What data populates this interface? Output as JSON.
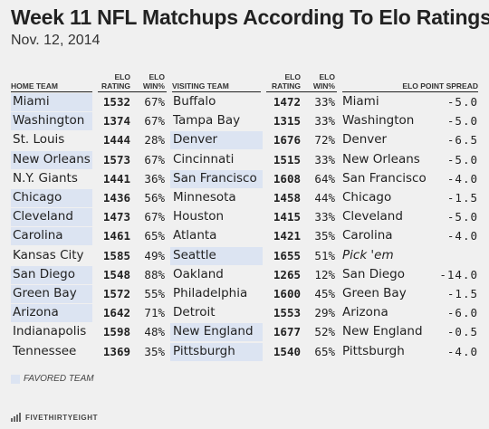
{
  "title": "Week 11 NFL Matchups According To Elo Ratings",
  "date": "Nov. 12, 2014",
  "headers": {
    "home_team": "HOME TEAM",
    "elo_rating": [
      "ELO",
      "RATING"
    ],
    "elo_win": [
      "ELO",
      "WIN%"
    ],
    "visiting_team": "VISITING TEAM",
    "elo_point_spread": "ELO POINT SPREAD"
  },
  "legend": {
    "label": "FAVORED TEAM",
    "color": "#dce4f2"
  },
  "footer": {
    "brand": "FIVETHIRTYEIGHT",
    "logo": "fivethirtyeight-logo"
  },
  "chart_data": {
    "type": "table",
    "columns": [
      "HOME TEAM",
      "ELO RATING",
      "ELO WIN%",
      "VISITING TEAM",
      "ELO RATING",
      "ELO WIN%",
      "ELO POINT SPREAD"
    ],
    "rows": [
      {
        "home": "Miami",
        "home_elo": "1532",
        "home_win": "67%",
        "visitor": "Buffalo",
        "visitor_elo": "1472",
        "visitor_win": "33%",
        "spread_team": "Miami",
        "spread": "-5.0",
        "favored": "home"
      },
      {
        "home": "Washington",
        "home_elo": "1374",
        "home_win": "67%",
        "visitor": "Tampa Bay",
        "visitor_elo": "1315",
        "visitor_win": "33%",
        "spread_team": "Washington",
        "spread": "-5.0",
        "favored": "home"
      },
      {
        "home": "St. Louis",
        "home_elo": "1444",
        "home_win": "28%",
        "visitor": "Denver",
        "visitor_elo": "1676",
        "visitor_win": "72%",
        "spread_team": "Denver",
        "spread": "-6.5",
        "favored": "visitor"
      },
      {
        "home": "New Orleans",
        "home_elo": "1573",
        "home_win": "67%",
        "visitor": "Cincinnati",
        "visitor_elo": "1515",
        "visitor_win": "33%",
        "spread_team": "New Orleans",
        "spread": "-5.0",
        "favored": "home"
      },
      {
        "home": "N.Y. Giants",
        "home_elo": "1441",
        "home_win": "36%",
        "visitor": "San Francisco",
        "visitor_elo": "1608",
        "visitor_win": "64%",
        "spread_team": "San Francisco",
        "spread": "-4.0",
        "favored": "visitor"
      },
      {
        "home": "Chicago",
        "home_elo": "1436",
        "home_win": "56%",
        "visitor": "Minnesota",
        "visitor_elo": "1458",
        "visitor_win": "44%",
        "spread_team": "Chicago",
        "spread": "-1.5",
        "favored": "home"
      },
      {
        "home": "Cleveland",
        "home_elo": "1473",
        "home_win": "67%",
        "visitor": "Houston",
        "visitor_elo": "1415",
        "visitor_win": "33%",
        "spread_team": "Cleveland",
        "spread": "-5.0",
        "favored": "home"
      },
      {
        "home": "Carolina",
        "home_elo": "1461",
        "home_win": "65%",
        "visitor": "Atlanta",
        "visitor_elo": "1421",
        "visitor_win": "35%",
        "spread_team": "Carolina",
        "spread": "-4.0",
        "favored": "home"
      },
      {
        "home": "Kansas City",
        "home_elo": "1585",
        "home_win": "49%",
        "visitor": "Seattle",
        "visitor_elo": "1655",
        "visitor_win": "51%",
        "spread_team": "Pick 'em",
        "spread": "",
        "favored": "visitor"
      },
      {
        "home": "San Diego",
        "home_elo": "1548",
        "home_win": "88%",
        "visitor": "Oakland",
        "visitor_elo": "1265",
        "visitor_win": "12%",
        "spread_team": "San Diego",
        "spread": "-14.0",
        "favored": "home"
      },
      {
        "home": "Green Bay",
        "home_elo": "1572",
        "home_win": "55%",
        "visitor": "Philadelphia",
        "visitor_elo": "1600",
        "visitor_win": "45%",
        "spread_team": "Green Bay",
        "spread": "-1.5",
        "favored": "home"
      },
      {
        "home": "Arizona",
        "home_elo": "1642",
        "home_win": "71%",
        "visitor": "Detroit",
        "visitor_elo": "1553",
        "visitor_win": "29%",
        "spread_team": "Arizona",
        "spread": "-6.0",
        "favored": "home"
      },
      {
        "home": "Indianapolis",
        "home_elo": "1598",
        "home_win": "48%",
        "visitor": "New England",
        "visitor_elo": "1677",
        "visitor_win": "52%",
        "spread_team": "New England",
        "spread": "-0.5",
        "favored": "visitor"
      },
      {
        "home": "Tennessee",
        "home_elo": "1369",
        "home_win": "35%",
        "visitor": "Pittsburgh",
        "visitor_elo": "1540",
        "visitor_win": "65%",
        "spread_team": "Pittsburgh",
        "spread": "-4.0",
        "favored": "visitor"
      }
    ]
  }
}
